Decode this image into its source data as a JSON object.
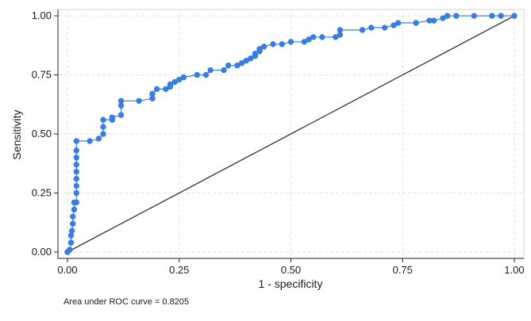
{
  "chart_data": {
    "type": "line",
    "xlabel": "1 - specificity",
    "ylabel": "Sensitivity",
    "xlim": [
      0,
      1
    ],
    "ylim": [
      0,
      1
    ],
    "x_ticks": [
      "0.00",
      "0.25",
      "0.50",
      "0.75",
      "1.00"
    ],
    "y_ticks": [
      "0.00",
      "0.25",
      "0.50",
      "0.75",
      "1.00"
    ],
    "grid": true,
    "note": "Area under ROC curve = 0.8205",
    "roc": {
      "color": "#3a7de0",
      "points": [
        [
          0.0,
          0.0
        ],
        [
          0.005,
          0.01
        ],
        [
          0.008,
          0.04
        ],
        [
          0.008,
          0.07
        ],
        [
          0.01,
          0.09
        ],
        [
          0.012,
          0.12
        ],
        [
          0.012,
          0.15
        ],
        [
          0.015,
          0.18
        ],
        [
          0.015,
          0.21
        ],
        [
          0.02,
          0.21
        ],
        [
          0.02,
          0.25
        ],
        [
          0.02,
          0.28
        ],
        [
          0.02,
          0.31
        ],
        [
          0.02,
          0.34
        ],
        [
          0.02,
          0.37
        ],
        [
          0.02,
          0.4
        ],
        [
          0.02,
          0.43
        ],
        [
          0.02,
          0.47
        ],
        [
          0.05,
          0.47
        ],
        [
          0.07,
          0.48
        ],
        [
          0.08,
          0.5
        ],
        [
          0.08,
          0.53
        ],
        [
          0.08,
          0.56
        ],
        [
          0.1,
          0.56
        ],
        [
          0.1,
          0.57
        ],
        [
          0.12,
          0.58
        ],
        [
          0.12,
          0.62
        ],
        [
          0.12,
          0.64
        ],
        [
          0.16,
          0.64
        ],
        [
          0.19,
          0.65
        ],
        [
          0.19,
          0.67
        ],
        [
          0.2,
          0.69
        ],
        [
          0.22,
          0.69
        ],
        [
          0.23,
          0.7
        ],
        [
          0.23,
          0.71
        ],
        [
          0.24,
          0.72
        ],
        [
          0.25,
          0.73
        ],
        [
          0.26,
          0.74
        ],
        [
          0.29,
          0.75
        ],
        [
          0.31,
          0.75
        ],
        [
          0.32,
          0.77
        ],
        [
          0.35,
          0.77
        ],
        [
          0.36,
          0.79
        ],
        [
          0.38,
          0.79
        ],
        [
          0.39,
          0.8
        ],
        [
          0.4,
          0.81
        ],
        [
          0.41,
          0.82
        ],
        [
          0.42,
          0.83
        ],
        [
          0.42,
          0.84
        ],
        [
          0.43,
          0.85
        ],
        [
          0.43,
          0.86
        ],
        [
          0.44,
          0.87
        ],
        [
          0.46,
          0.88
        ],
        [
          0.48,
          0.88
        ],
        [
          0.5,
          0.89
        ],
        [
          0.53,
          0.89
        ],
        [
          0.54,
          0.9
        ],
        [
          0.55,
          0.91
        ],
        [
          0.57,
          0.91
        ],
        [
          0.6,
          0.91
        ],
        [
          0.61,
          0.92
        ],
        [
          0.61,
          0.94
        ],
        [
          0.66,
          0.94
        ],
        [
          0.68,
          0.95
        ],
        [
          0.71,
          0.95
        ],
        [
          0.73,
          0.96
        ],
        [
          0.74,
          0.97
        ],
        [
          0.78,
          0.97
        ],
        [
          0.81,
          0.98
        ],
        [
          0.82,
          0.98
        ],
        [
          0.84,
          0.99
        ],
        [
          0.85,
          1.0
        ],
        [
          0.87,
          1.0
        ],
        [
          0.91,
          1.0
        ],
        [
          0.95,
          1.0
        ],
        [
          0.97,
          1.0
        ],
        [
          1.0,
          1.0
        ]
      ]
    },
    "reference_line": {
      "color": "#333333",
      "points": [
        [
          0,
          0
        ],
        [
          1,
          1
        ]
      ]
    }
  }
}
